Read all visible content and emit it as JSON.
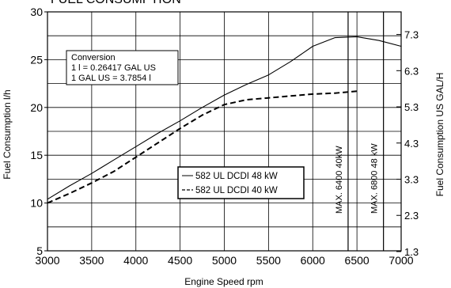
{
  "chart_data": {
    "type": "line",
    "title": "FUEL CONSUMPTION",
    "xlabel": "Engine Speed rpm",
    "ylabel": "Fuel Consumption l/h",
    "y2label": "Fuel Consumption US GAL/H",
    "xlim": [
      3000,
      7000
    ],
    "ylim": [
      5,
      30
    ],
    "xticks": [
      3000,
      3500,
      4000,
      4500,
      5000,
      5500,
      6000,
      6500,
      7000
    ],
    "yticks": [
      5,
      10,
      15,
      20,
      25,
      30
    ],
    "y2ticks": [
      {
        "label": "1.3",
        "value": 1.3
      },
      {
        "label": "2.3",
        "value": 2.3
      },
      {
        "label": "3.3",
        "value": 3.3
      },
      {
        "label": "4.3",
        "value": 4.3
      },
      {
        "label": "5.3",
        "value": 5.3
      },
      {
        "label": "6.3",
        "value": 6.3
      },
      {
        "label": "7.3",
        "value": 7.3
      }
    ],
    "y2_factor": 0.26417,
    "grid": true,
    "series": [
      {
        "name": "582 UL DCDI 48 kW",
        "style": "solid",
        "points": [
          [
            3000,
            10.4
          ],
          [
            3250,
            11.8
          ],
          [
            3500,
            13.1
          ],
          [
            3750,
            14.5
          ],
          [
            4000,
            15.9
          ],
          [
            4250,
            17.3
          ],
          [
            4500,
            18.6
          ],
          [
            4750,
            20.0
          ],
          [
            5000,
            21.3
          ],
          [
            5250,
            22.4
          ],
          [
            5500,
            23.4
          ],
          [
            5750,
            24.8
          ],
          [
            6000,
            26.4
          ],
          [
            6250,
            27.3
          ],
          [
            6500,
            27.4
          ],
          [
            6750,
            27.0
          ],
          [
            7000,
            26.4
          ]
        ]
      },
      {
        "name": "582 UL DCDI 40 kW",
        "style": "dashed",
        "points": [
          [
            3000,
            10.0
          ],
          [
            3250,
            11.0
          ],
          [
            3500,
            12.1
          ],
          [
            3750,
            13.3
          ],
          [
            4000,
            14.8
          ],
          [
            4250,
            16.3
          ],
          [
            4500,
            17.8
          ],
          [
            4750,
            19.2
          ],
          [
            5000,
            20.3
          ],
          [
            5250,
            20.8
          ],
          [
            5500,
            21.0
          ],
          [
            5750,
            21.2
          ],
          [
            6000,
            21.4
          ],
          [
            6250,
            21.5
          ],
          [
            6500,
            21.7
          ]
        ]
      }
    ],
    "conversion_box": {
      "title": "Conversion",
      "lines": [
        "1 l = 0.26417 GAL US",
        "1 GAL US = 3.7854 l"
      ]
    },
    "markers": [
      {
        "x": 6400,
        "label": "MAX. 6400 40kW"
      },
      {
        "x": 6800,
        "label": "MAX. 6800 48 kW"
      }
    ]
  }
}
